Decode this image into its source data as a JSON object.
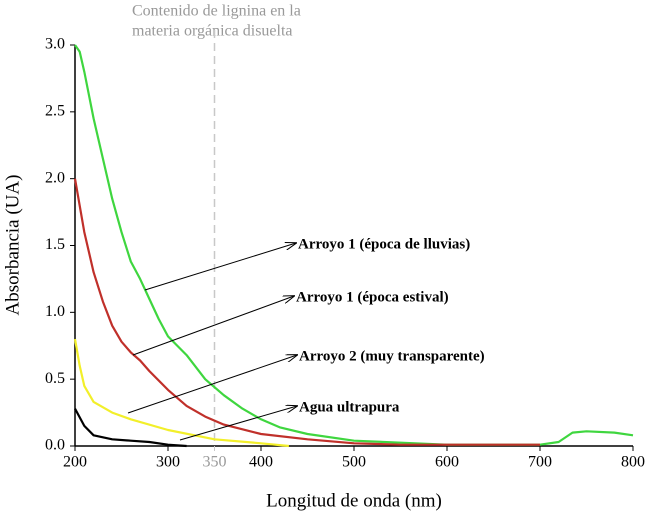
{
  "chart_data": {
    "type": "line",
    "annotation_top": [
      "Contenido de lignina en la",
      "materia orgánica disuelta"
    ],
    "xlabel": "Longitud de onda (nm)",
    "ylabel": "Absorbancia (UA)",
    "xlim": [
      200,
      800
    ],
    "ylim": [
      0,
      3
    ],
    "xticks": [
      200,
      300,
      350,
      400,
      500,
      600,
      700,
      800
    ],
    "yticks": [
      {
        "value": 0,
        "label": "0.0"
      },
      0.5,
      {
        "value": 1,
        "label": "1.0"
      },
      1.5,
      {
        "value": 2,
        "label": "2.0"
      },
      2.5,
      {
        "value": 3,
        "label": "3.0"
      }
    ],
    "vline": {
      "x": 350,
      "color": "#c8c8c8"
    },
    "series": [
      {
        "name": "Arroyo 1 (época de lluvias)",
        "color": "#3fd63f",
        "x": [
          200,
          205,
          210,
          220,
          230,
          240,
          250,
          260,
          270,
          280,
          290,
          300,
          320,
          340,
          360,
          380,
          400,
          420,
          450,
          500,
          600,
          700,
          720,
          735,
          750,
          780,
          800
        ],
        "values": [
          3.0,
          2.95,
          2.8,
          2.45,
          2.15,
          1.85,
          1.6,
          1.38,
          1.25,
          1.1,
          0.95,
          0.82,
          0.68,
          0.5,
          0.38,
          0.28,
          0.2,
          0.14,
          0.09,
          0.04,
          0.01,
          0.01,
          0.03,
          0.1,
          0.11,
          0.1,
          0.08
        ]
      },
      {
        "name": "Arroyo 1 (época estival)",
        "color": "#c0302a",
        "x": [
          200,
          210,
          220,
          230,
          240,
          250,
          260,
          270,
          280,
          300,
          320,
          340,
          360,
          400,
          450,
          500,
          550,
          600,
          700
        ],
        "values": [
          2.0,
          1.6,
          1.3,
          1.08,
          0.9,
          0.78,
          0.7,
          0.64,
          0.56,
          0.42,
          0.3,
          0.22,
          0.16,
          0.09,
          0.05,
          0.02,
          0.01,
          0.01,
          0.01
        ]
      },
      {
        "name": "Arroyo 2 (muy transparente)",
        "color": "#f2ef2a",
        "x": [
          200,
          205,
          210,
          220,
          240,
          260,
          300,
          350,
          400,
          430
        ],
        "values": [
          0.8,
          0.6,
          0.45,
          0.33,
          0.25,
          0.2,
          0.12,
          0.05,
          0.02,
          0.0
        ]
      },
      {
        "name": "Agua ultrapura",
        "color": "#000000",
        "x": [
          200,
          210,
          220,
          240,
          260,
          280,
          300,
          320
        ],
        "values": [
          0.28,
          0.15,
          0.08,
          0.05,
          0.04,
          0.03,
          0.01,
          0.0
        ]
      }
    ]
  }
}
